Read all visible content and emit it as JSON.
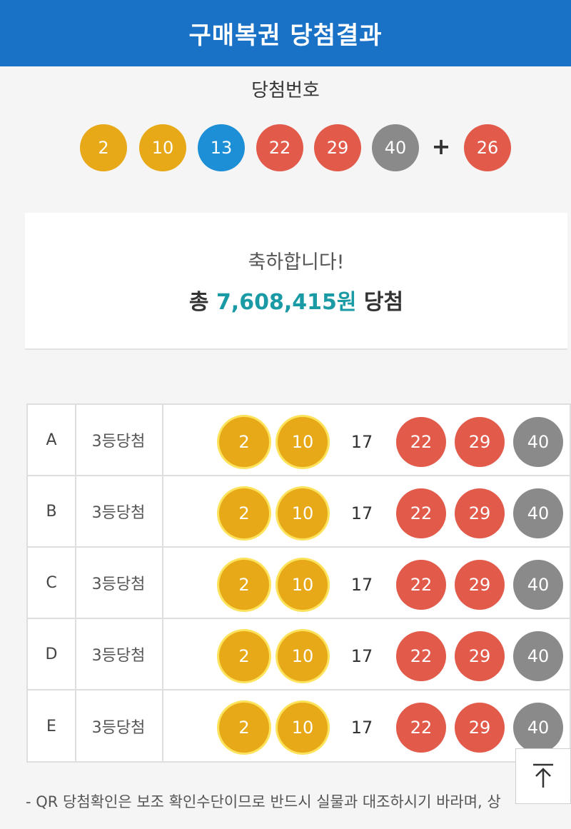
{
  "header": {
    "title": "구매복권 당첨결과"
  },
  "winning": {
    "label": "당첨번호",
    "plus": "+",
    "numbers": [
      {
        "value": "2",
        "color": "#e7a918"
      },
      {
        "value": "10",
        "color": "#e7a918"
      },
      {
        "value": "13",
        "color": "#1d8fd6"
      },
      {
        "value": "22",
        "color": "#e25a4a"
      },
      {
        "value": "29",
        "color": "#e25a4a"
      },
      {
        "value": "40",
        "color": "#8a8a8a"
      }
    ],
    "bonus": {
      "value": "26",
      "color": "#e25a4a"
    }
  },
  "result": {
    "congrats": "축하합니다!",
    "total_prefix": "총",
    "total_amount": "7,608,415원",
    "total_suffix": "당첨"
  },
  "tickets": [
    {
      "game": "A",
      "rank": "3등당첨",
      "numbers": [
        "2",
        "10",
        "17",
        "22",
        "29",
        "40"
      ]
    },
    {
      "game": "B",
      "rank": "3등당첨",
      "numbers": [
        "2",
        "10",
        "17",
        "22",
        "29",
        "40"
      ]
    },
    {
      "game": "C",
      "rank": "3등당첨",
      "numbers": [
        "2",
        "10",
        "17",
        "22",
        "29",
        "40"
      ]
    },
    {
      "game": "D",
      "rank": "3등당첨",
      "numbers": [
        "2",
        "10",
        "17",
        "22",
        "29",
        "40"
      ]
    },
    {
      "game": "E",
      "rank": "3등당첨",
      "numbers": [
        "2",
        "10",
        "17",
        "22",
        "29",
        "40"
      ]
    }
  ],
  "footnote": "- QR 당첨확인은 보조 확인수단이므로 반드시 실물과 대조하시기 바라며, 상",
  "scroll_top": {
    "icon": "arrow-up-to-top-icon"
  },
  "colors": {
    "header": "#1a72c7",
    "accent": "#1a9aa4",
    "yellow": "#e7a918",
    "blue": "#1d8fd6",
    "red": "#e25a4a",
    "gray": "#8a8a8a"
  }
}
